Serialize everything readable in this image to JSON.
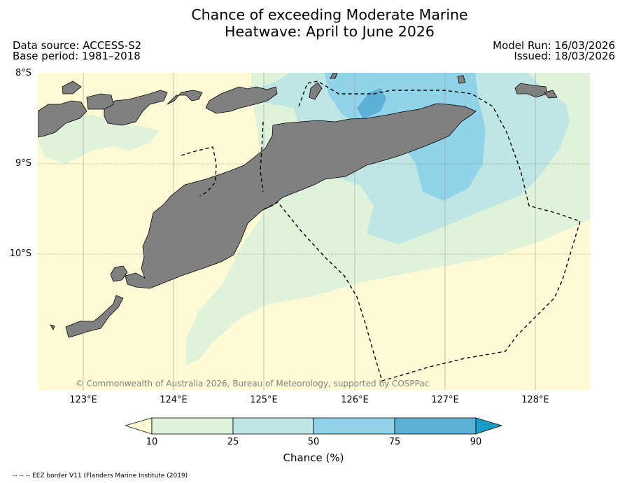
{
  "header": {
    "title_line1": "Chance of exceeding Moderate Marine",
    "title_line2": "Heatwave: April to June 2026",
    "data_source": "Data source: ACCESS-S2",
    "base_period": "Base period: 1981–2018",
    "model_run": "Model Run: 16/03/2026",
    "issued": "Issued: 18/03/2026"
  },
  "map": {
    "lat_labels": [
      "8°S",
      "9°S",
      "10°S"
    ],
    "lon_labels": [
      "123°E",
      "124°E",
      "125°E",
      "126°E",
      "127°E",
      "128°E"
    ],
    "extent": {
      "lon_min": 122.5,
      "lon_max": 128.6,
      "lat_min": -11.5,
      "lat_max": -8.0
    },
    "land_color": "#808080",
    "copyright": "© Commonwealth of Australia 2026, Bureau of Meteorology, supported by COSPPac"
  },
  "colorbar": {
    "label": "Chance (%)",
    "ticks": [
      "10",
      "25",
      "50",
      "75",
      "90"
    ],
    "colors": [
      "#fffad6",
      "#def3da",
      "#c0e5e5",
      "#91d4ea",
      "#5db1d6",
      "#1b9bc8"
    ]
  },
  "legend": {
    "eez_text": "-- -- -- EEZ border V11 (Flanders Marine Institute (2019)"
  }
}
